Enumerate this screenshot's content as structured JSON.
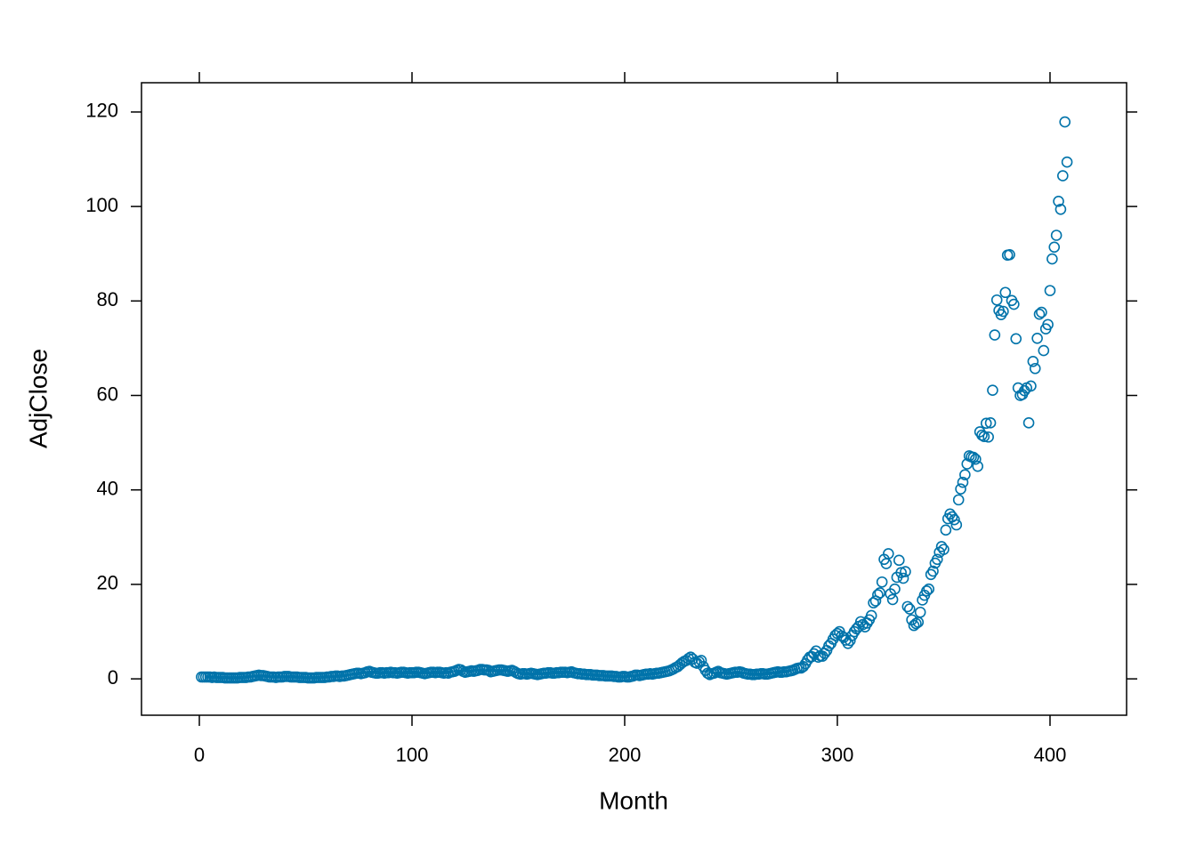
{
  "chart_data": {
    "type": "scatter",
    "xlabel": "Month",
    "ylabel": "AdjClose",
    "xlim": [
      -27.2,
      436
    ],
    "ylim": [
      -7.7,
      126.2
    ],
    "xticks": [
      0,
      100,
      200,
      300,
      400
    ],
    "yticks": [
      0,
      20,
      40,
      60,
      80,
      100,
      120
    ],
    "color": "#0073aa",
    "x": [
      1,
      2,
      3,
      4,
      5,
      6,
      7,
      8,
      9,
      10,
      11,
      12,
      13,
      14,
      15,
      16,
      17,
      18,
      19,
      20,
      21,
      22,
      23,
      24,
      25,
      26,
      27,
      28,
      29,
      30,
      31,
      32,
      33,
      34,
      35,
      36,
      37,
      38,
      39,
      40,
      41,
      42,
      43,
      44,
      45,
      46,
      47,
      48,
      49,
      50,
      51,
      52,
      53,
      54,
      55,
      56,
      57,
      58,
      59,
      60,
      61,
      62,
      63,
      64,
      65,
      66,
      67,
      68,
      69,
      70,
      71,
      72,
      73,
      74,
      75,
      76,
      77,
      78,
      79,
      80,
      81,
      82,
      83,
      84,
      85,
      86,
      87,
      88,
      89,
      90,
      91,
      92,
      93,
      94,
      95,
      96,
      97,
      98,
      99,
      100,
      101,
      102,
      103,
      104,
      105,
      106,
      107,
      108,
      109,
      110,
      111,
      112,
      113,
      114,
      115,
      116,
      117,
      118,
      119,
      120,
      121,
      122,
      123,
      124,
      125,
      126,
      127,
      128,
      129,
      130,
      131,
      132,
      133,
      134,
      135,
      136,
      137,
      138,
      139,
      140,
      141,
      142,
      143,
      144,
      145,
      146,
      147,
      148,
      149,
      150,
      151,
      152,
      153,
      154,
      155,
      156,
      157,
      158,
      159,
      160,
      161,
      162,
      163,
      164,
      165,
      166,
      167,
      168,
      169,
      170,
      171,
      172,
      173,
      174,
      175,
      176,
      177,
      178,
      179,
      180,
      181,
      182,
      183,
      184,
      185,
      186,
      187,
      188,
      189,
      190,
      191,
      192,
      193,
      194,
      195,
      196,
      197,
      198,
      199,
      200,
      201,
      202,
      203,
      204,
      205,
      206,
      207,
      208,
      209,
      210,
      211,
      212,
      213,
      214,
      215,
      216,
      217,
      218,
      219,
      220,
      221,
      222,
      223,
      224,
      225,
      226,
      227,
      228,
      229,
      230,
      231,
      232,
      233,
      234,
      235,
      236,
      237,
      238,
      239,
      240,
      241,
      242,
      243,
      244,
      245,
      246,
      247,
      248,
      249,
      250,
      251,
      252,
      253,
      254,
      255,
      256,
      257,
      258,
      259,
      260,
      261,
      262,
      263,
      264,
      265,
      266,
      267,
      268,
      269,
      270,
      271,
      272,
      273,
      274,
      275,
      276,
      277,
      278,
      279,
      280,
      281,
      282,
      283,
      284,
      285,
      286,
      287,
      288,
      289,
      290,
      291,
      292,
      293,
      294,
      295,
      296,
      297,
      298,
      299,
      300,
      301,
      302,
      303,
      304,
      305,
      306,
      307,
      308,
      309,
      310,
      311,
      312,
      313,
      314,
      315,
      316,
      317,
      318,
      319,
      320,
      321,
      322,
      323,
      324,
      325,
      326,
      327,
      328,
      329,
      330,
      331,
      332,
      333,
      334,
      335,
      336,
      337,
      338,
      339,
      340,
      341,
      342,
      343,
      344,
      345,
      346,
      347,
      348,
      349,
      350,
      351,
      352,
      353,
      354,
      355,
      356,
      357,
      358,
      359,
      360,
      361,
      362,
      363,
      364,
      365,
      366,
      367,
      368,
      369,
      370,
      371,
      372,
      373,
      374,
      375,
      376,
      377,
      378,
      379,
      380,
      381,
      382,
      383,
      384,
      385,
      386,
      387,
      388,
      389,
      390,
      391,
      392,
      393,
      394,
      395,
      396,
      397,
      398,
      399,
      400,
      401,
      402,
      403,
      404,
      405,
      406,
      407,
      408
    ],
    "values": [
      0.4,
      0.4,
      0.4,
      0.4,
      0.4,
      0.3,
      0.4,
      0.3,
      0.3,
      0.3,
      0.3,
      0.2,
      0.2,
      0.2,
      0.2,
      0.2,
      0.2,
      0.2,
      0.3,
      0.3,
      0.3,
      0.3,
      0.4,
      0.4,
      0.5,
      0.6,
      0.7,
      0.8,
      0.7,
      0.7,
      0.6,
      0.5,
      0.4,
      0.4,
      0.4,
      0.3,
      0.4,
      0.4,
      0.4,
      0.5,
      0.5,
      0.5,
      0.4,
      0.4,
      0.4,
      0.4,
      0.3,
      0.3,
      0.3,
      0.3,
      0.2,
      0.2,
      0.2,
      0.2,
      0.3,
      0.3,
      0.3,
      0.3,
      0.3,
      0.4,
      0.4,
      0.5,
      0.5,
      0.6,
      0.6,
      0.5,
      0.6,
      0.6,
      0.7,
      0.8,
      0.9,
      1.0,
      1.1,
      1.2,
      1.2,
      1.1,
      1.2,
      1.3,
      1.5,
      1.6,
      1.4,
      1.3,
      1.2,
      1.2,
      1.3,
      1.3,
      1.2,
      1.3,
      1.3,
      1.4,
      1.3,
      1.3,
      1.2,
      1.3,
      1.4,
      1.4,
      1.3,
      1.2,
      1.3,
      1.3,
      1.3,
      1.4,
      1.4,
      1.3,
      1.2,
      1.1,
      1.2,
      1.3,
      1.4,
      1.4,
      1.3,
      1.4,
      1.4,
      1.3,
      1.2,
      1.3,
      1.2,
      1.4,
      1.5,
      1.6,
      1.8,
      2.0,
      1.9,
      1.6,
      1.4,
      1.5,
      1.6,
      1.7,
      1.6,
      1.7,
      1.8,
      2.0,
      2.0,
      1.9,
      1.9,
      1.8,
      1.5,
      1.6,
      1.7,
      1.8,
      1.9,
      1.9,
      1.8,
      1.7,
      1.6,
      1.7,
      1.8,
      1.6,
      1.3,
      1.1,
      1.0,
      1.1,
      1.1,
      1.0,
      1.1,
      1.2,
      1.1,
      1.0,
      0.9,
      1.0,
      1.1,
      1.2,
      1.2,
      1.3,
      1.3,
      1.2,
      1.2,
      1.3,
      1.3,
      1.4,
      1.4,
      1.4,
      1.3,
      1.4,
      1.5,
      1.3,
      1.2,
      1.1,
      1.1,
      1.0,
      1.0,
      0.9,
      0.9,
      0.9,
      0.8,
      0.8,
      0.8,
      0.7,
      0.7,
      0.7,
      0.6,
      0.6,
      0.6,
      0.6,
      0.5,
      0.5,
      0.4,
      0.4,
      0.5,
      0.5,
      0.4,
      0.4,
      0.5,
      0.6,
      0.8,
      0.8,
      0.7,
      0.8,
      0.9,
      1.0,
      1.0,
      1.1,
      1.0,
      1.1,
      1.2,
      1.2,
      1.3,
      1.4,
      1.5,
      1.6,
      1.7,
      1.9,
      2.1,
      2.4,
      2.6,
      3.0,
      3.4,
      3.7,
      3.9,
      4.3,
      4.6,
      4.2,
      3.5,
      3.3,
      3.6,
      3.9,
      2.6,
      1.8,
      1.2,
      0.9,
      1.1,
      1.2,
      1.4,
      1.6,
      1.3,
      1.2,
      1.1,
      1.0,
      1.1,
      1.2,
      1.3,
      1.4,
      1.4,
      1.5,
      1.4,
      1.2,
      1.1,
      1.0,
      1.0,
      0.9,
      0.9,
      1.0,
      1.0,
      1.1,
      1.1,
      1.0,
      1.0,
      1.1,
      1.2,
      1.3,
      1.4,
      1.5,
      1.4,
      1.4,
      1.5,
      1.5,
      1.6,
      1.7,
      1.8,
      2.0,
      2.2,
      2.3,
      2.3,
      2.6,
      3.2,
      4.0,
      4.6,
      4.7,
      5.3,
      5.9,
      4.6,
      4.9,
      4.8,
      5.4,
      6.0,
      7.0,
      7.5,
      8.4,
      9.2,
      9.6,
      10.0,
      9.1,
      8.8,
      8.2,
      7.5,
      8.1,
      9.2,
      10.0,
      10.6,
      11.1,
      12.1,
      11.5,
      11.0,
      11.8,
      12.5,
      13.4,
      16.1,
      16.5,
      17.8,
      18.2,
      20.5,
      25.3,
      24.4,
      26.5,
      18.0,
      16.8,
      19.0,
      21.5,
      25.1,
      22.5,
      21.3,
      22.7,
      15.3,
      14.8,
      12.5,
      11.3,
      11.7,
      12.0,
      14.1,
      16.7,
      17.7,
      18.6,
      19.0,
      22.1,
      22.8,
      24.5,
      25.3,
      26.8,
      28.0,
      27.4,
      31.5,
      33.9,
      34.9,
      34.3,
      33.7,
      32.6,
      37.9,
      40.2,
      41.6,
      43.2,
      45.5,
      47.2,
      47.0,
      46.9,
      46.5,
      45.0,
      52.3,
      51.6,
      51.3,
      54.1,
      51.2,
      54.2,
      61.1,
      72.8,
      80.2,
      78.0,
      77.1,
      77.8,
      81.8,
      89.7,
      89.8,
      80.1,
      79.3,
      72.0,
      61.6,
      60.0,
      60.2,
      61.0,
      61.6,
      54.2,
      62.0,
      67.2,
      65.7,
      72.1,
      77.2,
      77.6,
      69.5,
      74.1,
      75.0,
      82.2,
      88.9,
      91.4,
      93.9,
      101.1,
      99.4,
      106.5,
      117.9,
      109.4
    ]
  }
}
